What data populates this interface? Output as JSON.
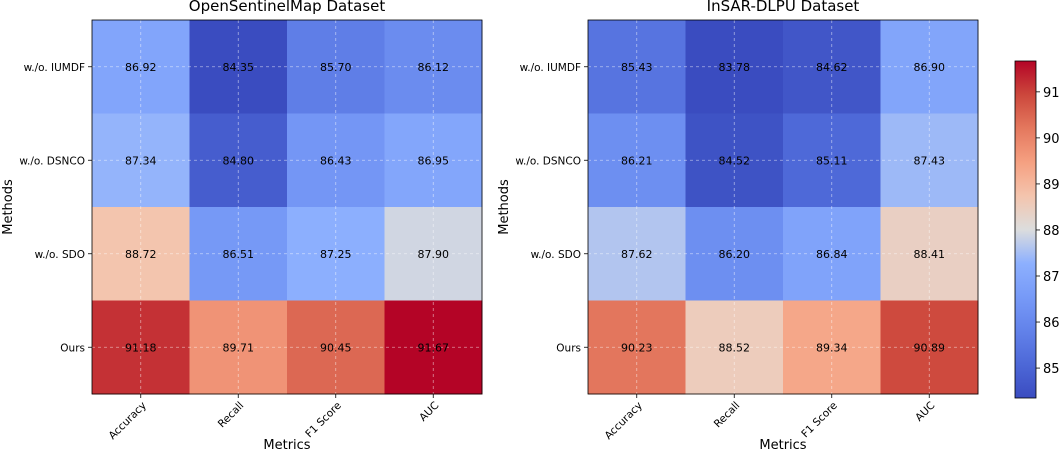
{
  "chart_data": [
    {
      "type": "heatmap",
      "title": "OpenSentinelMap Dataset",
      "xlabel": "Metrics",
      "ylabel": "Methods",
      "x_categories": [
        "Accuracy",
        "Recall",
        "F1 Score",
        "AUC"
      ],
      "y_categories": [
        "w./o. IUMDF",
        "w./o. DSNCO",
        "w./o. SDO",
        "Ours"
      ],
      "values": [
        [
          86.92,
          84.35,
          85.7,
          86.12
        ],
        [
          87.34,
          84.8,
          86.43,
          86.95
        ],
        [
          88.72,
          86.51,
          87.25,
          87.9
        ],
        [
          91.18,
          89.71,
          90.45,
          91.67
        ]
      ],
      "grid": true
    },
    {
      "type": "heatmap",
      "title": "InSAR-DLPU Dataset",
      "xlabel": "Metrics",
      "ylabel": "Methods",
      "x_categories": [
        "Accuracy",
        "Recall",
        "F1 Score",
        "AUC"
      ],
      "y_categories": [
        "w./o. IUMDF",
        "w./o. DSNCO",
        "w./o. SDO",
        "Ours"
      ],
      "values": [
        [
          85.43,
          83.78,
          84.62,
          86.9
        ],
        [
          86.21,
          84.52,
          85.11,
          87.43
        ],
        [
          87.62,
          86.2,
          86.84,
          88.41
        ],
        [
          90.23,
          88.52,
          89.34,
          90.89
        ]
      ],
      "grid": true
    }
  ],
  "colorbar": {
    "colormap": "coolwarm",
    "vmin": 84.35,
    "vmax": 91.67,
    "ticks": [
      85,
      86,
      87,
      88,
      89,
      90,
      91
    ]
  }
}
